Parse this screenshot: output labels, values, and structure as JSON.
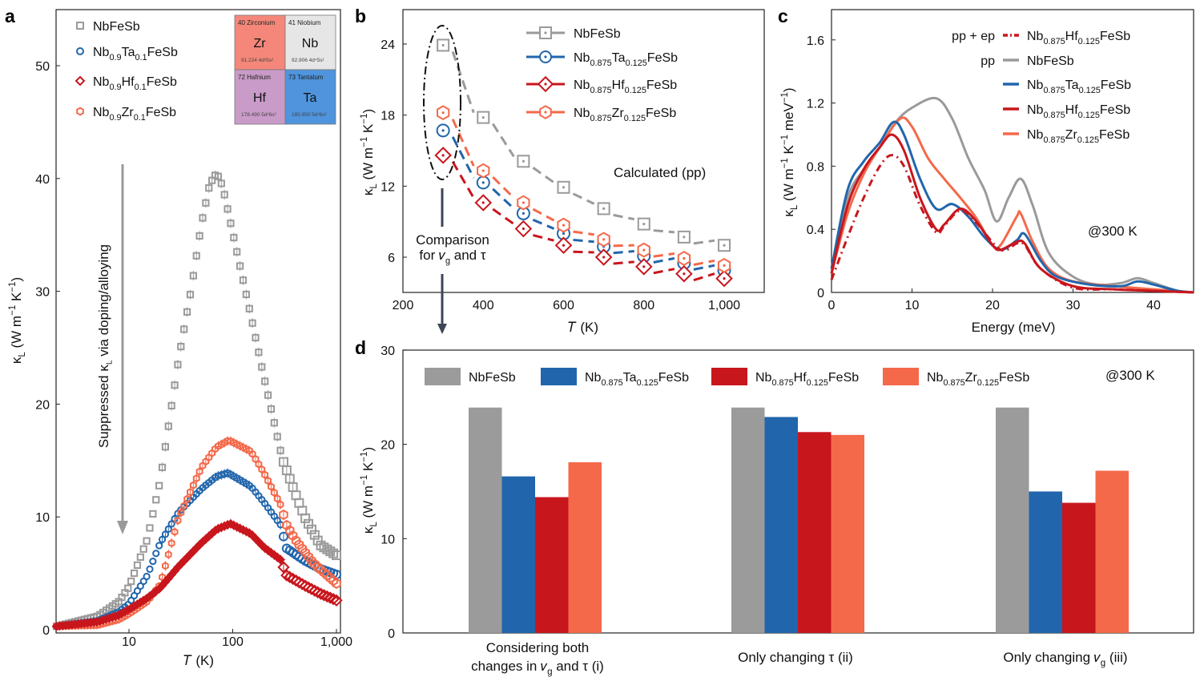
{
  "colors": {
    "NbFeSb": "#9a9a9a",
    "Ta": "#2166ac",
    "Hf": "#c8161d",
    "Zr": "#f4694a",
    "bar_gray": "#9b9b9b",
    "arrow": "#3d4655"
  },
  "panel_labels": [
    "a",
    "b",
    "c",
    "d"
  ],
  "chart_data": [
    {
      "panel": "a",
      "type": "scatter",
      "xlabel": "T (K)",
      "ylabel": "κ_{L} (W m^{−1} K^{−1})",
      "xscale": "log",
      "xlim": [
        2,
        1100
      ],
      "ylim": [
        0,
        55
      ],
      "xticks": [
        10,
        100,
        1000
      ],
      "xtick_labels": [
        "10",
        "100",
        "1,000"
      ],
      "yticks": [
        0,
        10,
        20,
        30,
        40,
        50
      ],
      "annotation": "Suppressed κ_{L} via doping/alloying",
      "series": [
        {
          "name": "NbFeSb",
          "key": "NbFeSb",
          "marker": "square",
          "points": [
            [
              2,
              0.3
            ],
            [
              5,
              1.2
            ],
            [
              8,
              2.5
            ],
            [
              10,
              3.8
            ],
            [
              15,
              8
            ],
            [
              20,
              13.2
            ],
            [
              30,
              23.9
            ],
            [
              40,
              30.3
            ],
            [
              50,
              36
            ],
            [
              60,
              39.5
            ],
            [
              70,
              40.5
            ],
            [
              80,
              39.3
            ],
            [
              100,
              35.2
            ],
            [
              150,
              27.8
            ],
            [
              200,
              22.4
            ],
            [
              300,
              15.2
            ],
            [
              400,
              12.1
            ],
            [
              500,
              9.9
            ],
            [
              700,
              7.5
            ],
            [
              1000,
              6.6
            ]
          ]
        },
        {
          "name": "Nb_{0.9}Ta_{0.1}FeSb",
          "key": "Ta",
          "marker": "circle",
          "points": [
            [
              2,
              0.3
            ],
            [
              5,
              0.8
            ],
            [
              8,
              1.6
            ],
            [
              10,
              2.3
            ],
            [
              15,
              4.8
            ],
            [
              20,
              7.7
            ],
            [
              30,
              10.4
            ],
            [
              50,
              12.5
            ],
            [
              70,
              13.6
            ],
            [
              90,
              13.9
            ],
            [
              150,
              12.7
            ],
            [
              200,
              11.3
            ],
            [
              300,
              9.1
            ],
            [
              320,
              7.3
            ],
            [
              500,
              6.1
            ],
            [
              700,
              5.4
            ],
            [
              1000,
              4.9
            ]
          ]
        },
        {
          "name": "Nb_{0.9}Hf_{0.1}FeSb",
          "key": "Hf",
          "marker": "diamond",
          "points": [
            [
              2,
              0.3
            ],
            [
              5,
              0.7
            ],
            [
              8,
              1.3
            ],
            [
              10,
              1.8
            ],
            [
              15,
              2.8
            ],
            [
              20,
              3.7
            ],
            [
              30,
              5.6
            ],
            [
              50,
              7.7
            ],
            [
              70,
              8.9
            ],
            [
              95,
              9.4
            ],
            [
              150,
              8.5
            ],
            [
              200,
              7.3
            ],
            [
              300,
              6.1
            ],
            [
              320,
              4.9
            ],
            [
              500,
              3.9
            ],
            [
              700,
              3.2
            ],
            [
              1000,
              2.6
            ]
          ]
        },
        {
          "name": "Nb_{0.9}Zr_{0.1}FeSb",
          "key": "Zr",
          "marker": "hexagon",
          "points": [
            [
              2,
              0.3
            ],
            [
              5,
              0.4
            ],
            [
              8,
              0.9
            ],
            [
              10,
              1.4
            ],
            [
              15,
              2.5
            ],
            [
              20,
              4.0
            ],
            [
              30,
              9.9
            ],
            [
              50,
              14.4
            ],
            [
              70,
              16.2
            ],
            [
              92,
              16.8
            ],
            [
              150,
              15.8
            ],
            [
              200,
              13.9
            ],
            [
              300,
              10.8
            ],
            [
              320,
              9.5
            ],
            [
              400,
              8.0
            ],
            [
              600,
              5.9
            ],
            [
              1000,
              4.1
            ]
          ]
        }
      ],
      "inset_periodic_table": [
        {
          "number_name": "40 Zirconium",
          "symbol": "Zr",
          "mass": "91.224",
          "config": "4d²5s²",
          "color": "#f4877a"
        },
        {
          "number_name": "41 Niobium",
          "symbol": "Nb",
          "mass": "92.906",
          "config": "4d⁴5s¹",
          "color": "#e6e6e6"
        },
        {
          "number_name": "72 Hafnium",
          "symbol": "Hf",
          "mass": "178.490",
          "config": "5d²6s²",
          "color": "#c99bc8"
        },
        {
          "number_name": "73 Tantalum",
          "symbol": "Ta",
          "mass": "180.950",
          "config": "5d³6s²",
          "color": "#4f94dd"
        }
      ]
    },
    {
      "panel": "b",
      "type": "line",
      "xlabel": "T (K)",
      "ylabel": "κ_{L} (W m^{−1} K^{−1})",
      "xlim": [
        200,
        1100
      ],
      "ylim": [
        3,
        27
      ],
      "xticks": [
        200,
        400,
        600,
        800,
        1000
      ],
      "xtick_labels": [
        "200",
        "400",
        "600",
        "800",
        "1,000"
      ],
      "yticks": [
        6,
        12,
        18,
        24
      ],
      "x": [
        300,
        400,
        500,
        600,
        700,
        800,
        900,
        1000
      ],
      "annotation": "Calculated (pp)",
      "comparison_label": [
        "Comparison",
        "for v_{g} and τ"
      ],
      "series": [
        {
          "name": "NbFeSb",
          "key": "NbFeSb",
          "marker": "square",
          "values": [
            23.9,
            17.8,
            14.1,
            11.9,
            10.1,
            8.8,
            7.7,
            7.0
          ]
        },
        {
          "name": "Nb_{0.875}Ta_{0.125}FeSb",
          "key": "Ta",
          "marker": "circle",
          "values": [
            16.7,
            12.3,
            9.7,
            8.0,
            6.9,
            6.1,
            5.5,
            4.9
          ]
        },
        {
          "name": "Nb_{0.875}Hf_{0.125}FeSb",
          "key": "Hf",
          "marker": "diamond",
          "values": [
            14.6,
            10.6,
            8.4,
            7.0,
            6.0,
            5.2,
            4.6,
            4.2
          ]
        },
        {
          "name": "Nb_{0.875}Zr_{0.125}FeSb",
          "key": "Zr",
          "marker": "hexagon",
          "values": [
            18.2,
            13.3,
            10.6,
            8.7,
            7.5,
            6.6,
            5.9,
            5.3
          ]
        }
      ]
    },
    {
      "panel": "c",
      "type": "line",
      "xlabel": "Energy (meV)",
      "ylabel": "κ_{L} (W m^{−1} K^{−1} meV^{−1})",
      "xlim": [
        0,
        45
      ],
      "ylim": [
        0,
        1.78
      ],
      "xticks": [
        0,
        10,
        20,
        30,
        40
      ],
      "yticks": [
        0,
        0.4,
        0.8,
        1.2,
        1.6
      ],
      "annotation": "@300 K",
      "series": [
        {
          "name": "Nb_{0.875}Hf_{0.125}FeSb",
          "prefix": "pp + ep",
          "key": "Hf",
          "dash": "dashdot",
          "points": [
            [
              0,
              0.08
            ],
            [
              2,
              0.35
            ],
            [
              4,
              0.6
            ],
            [
              6,
              0.8
            ],
            [
              7.5,
              0.87
            ],
            [
              9,
              0.8
            ],
            [
              11,
              0.55
            ],
            [
              13,
              0.38
            ],
            [
              14,
              0.42
            ],
            [
              16,
              0.52
            ],
            [
              18,
              0.44
            ],
            [
              21,
              0.27
            ],
            [
              23,
              0.31
            ],
            [
              24,
              0.3
            ],
            [
              26,
              0.15
            ],
            [
              30,
              0.03
            ],
            [
              35,
              0.02
            ],
            [
              40,
              0.01
            ],
            [
              45,
              0
            ]
          ]
        },
        {
          "name": "NbFeSb",
          "prefix": "pp",
          "key": "NbFeSb",
          "points": [
            [
              0,
              0.15
            ],
            [
              2,
              0.6
            ],
            [
              4,
              0.78
            ],
            [
              6,
              0.92
            ],
            [
              8,
              1.08
            ],
            [
              10,
              1.17
            ],
            [
              13,
              1.23
            ],
            [
              15,
              1.1
            ],
            [
              17,
              0.85
            ],
            [
              19,
              0.65
            ],
            [
              20.5,
              0.45
            ],
            [
              22,
              0.6
            ],
            [
              23.5,
              0.72
            ],
            [
              25,
              0.55
            ],
            [
              27,
              0.25
            ],
            [
              30,
              0.1
            ],
            [
              33,
              0.05
            ],
            [
              36,
              0.06
            ],
            [
              38,
              0.09
            ],
            [
              40,
              0.06
            ],
            [
              43,
              0.01
            ],
            [
              45,
              0
            ]
          ]
        },
        {
          "name": "Nb_{0.875}Ta_{0.125}FeSb",
          "key": "Ta",
          "points": [
            [
              0,
              0.15
            ],
            [
              2,
              0.65
            ],
            [
              4,
              0.83
            ],
            [
              6,
              0.95
            ],
            [
              7.7,
              1.08
            ],
            [
              9,
              1.0
            ],
            [
              11,
              0.72
            ],
            [
              13,
              0.53
            ],
            [
              15,
              0.56
            ],
            [
              17,
              0.48
            ],
            [
              19,
              0.35
            ],
            [
              21,
              0.27
            ],
            [
              23,
              0.33
            ],
            [
              24,
              0.37
            ],
            [
              26,
              0.2
            ],
            [
              28,
              0.1
            ],
            [
              32,
              0.05
            ],
            [
              36,
              0.04
            ],
            [
              38,
              0.07
            ],
            [
              40,
              0.05
            ],
            [
              43,
              0.01
            ],
            [
              45,
              0
            ]
          ]
        },
        {
          "name": "Nb_{0.875}Hf_{0.125}FeSb",
          "key": "Hf",
          "points": [
            [
              0,
              0.12
            ],
            [
              2,
              0.55
            ],
            [
              4,
              0.78
            ],
            [
              6,
              0.92
            ],
            [
              7.5,
              1.0
            ],
            [
              9,
              0.9
            ],
            [
              11,
              0.6
            ],
            [
              13,
              0.4
            ],
            [
              14,
              0.43
            ],
            [
              16,
              0.53
            ],
            [
              18,
              0.45
            ],
            [
              20,
              0.3
            ],
            [
              21,
              0.27
            ],
            [
              23,
              0.32
            ],
            [
              24,
              0.31
            ],
            [
              26,
              0.15
            ],
            [
              30,
              0.04
            ],
            [
              35,
              0.02
            ],
            [
              40,
              0.01
            ],
            [
              45,
              0
            ]
          ]
        },
        {
          "name": "Nb_{0.875}Zr_{0.125}FeSb",
          "key": "Zr",
          "points": [
            [
              0,
              0.12
            ],
            [
              2,
              0.5
            ],
            [
              4,
              0.75
            ],
            [
              6,
              0.92
            ],
            [
              8.5,
              1.1
            ],
            [
              10,
              1.05
            ],
            [
              12,
              0.85
            ],
            [
              14,
              0.72
            ],
            [
              16,
              0.6
            ],
            [
              18,
              0.47
            ],
            [
              20,
              0.3
            ],
            [
              21,
              0.3
            ],
            [
              23,
              0.48
            ],
            [
              23.5,
              0.5
            ],
            [
              25,
              0.32
            ],
            [
              27,
              0.15
            ],
            [
              30,
              0.07
            ],
            [
              35,
              0.04
            ],
            [
              40,
              0.02
            ],
            [
              45,
              0
            ]
          ]
        }
      ]
    },
    {
      "panel": "d",
      "type": "bar",
      "ylabel": "κ_{L} (W m^{−1} K^{−1})",
      "ylim": [
        0,
        30
      ],
      "yticks": [
        0,
        10,
        20,
        30
      ],
      "annotation": "@300 K",
      "categories": [
        [
          "Considering both",
          "changes in v_{g} and τ (i)"
        ],
        [
          "Only changing τ (ii)"
        ],
        [
          "Only changing v_{g} (iii)"
        ]
      ],
      "series": [
        {
          "name": "NbFeSb",
          "key": "bar_gray",
          "values": [
            23.9,
            23.9,
            23.9
          ]
        },
        {
          "name": "Nb_{0.875}Ta_{0.125}FeSb",
          "key": "Ta",
          "values": [
            16.6,
            22.9,
            15.0
          ]
        },
        {
          "name": "Nb_{0.875}Hf_{0.125}FeSb",
          "key": "Hf",
          "values": [
            14.4,
            21.3,
            13.8
          ]
        },
        {
          "name": "Nb_{0.875}Zr_{0.125}FeSb",
          "key": "Zr",
          "values": [
            18.1,
            21.0,
            17.2
          ]
        }
      ]
    }
  ]
}
